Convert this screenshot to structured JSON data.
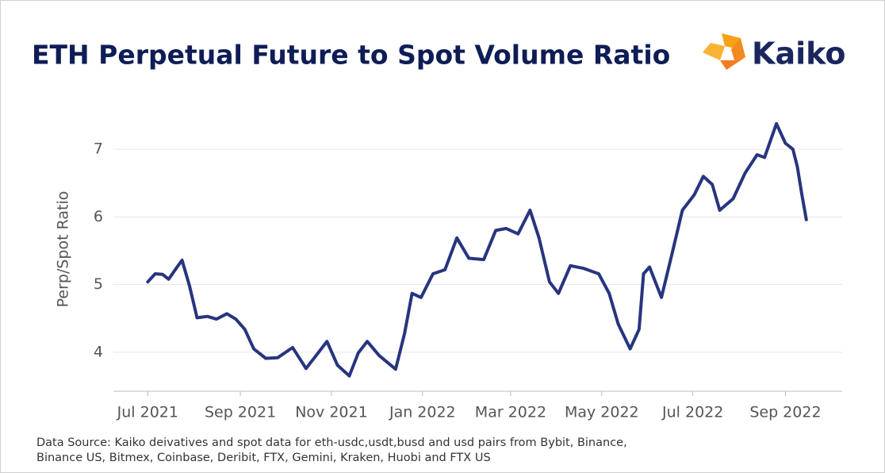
{
  "logo": "Kaiko",
  "chart_data": {
    "type": "line",
    "title": "ETH Perpetual Future to Spot Volume Ratio",
    "y_label": "Perp/Spot Ratio",
    "source": [
      "Data Source: Kaiko deivatives and spot data for eth-usdc,usdt,busd and usd pairs from Bybit, Binance,",
      "Binance US, Bitmex, Coinbase, Deribit, FTX, Gemini, Kraken, Huobi and FTX US"
    ],
    "x": [
      "2021-07-01",
      "2021-07-06",
      "2021-07-11",
      "2021-07-15",
      "2021-07-20",
      "2021-07-24",
      "2021-07-29",
      "2021-08-03",
      "2021-08-10",
      "2021-08-16",
      "2021-08-23",
      "2021-08-29",
      "2021-09-04",
      "2021-09-10",
      "2021-09-18",
      "2021-09-26",
      "2021-10-06",
      "2021-10-15",
      "2021-10-21",
      "2021-10-29",
      "2021-11-05",
      "2021-11-13",
      "2021-11-19",
      "2021-11-25",
      "2021-12-03",
      "2021-12-14",
      "2021-12-20",
      "2021-12-25",
      "2021-12-31",
      "2022-01-08",
      "2022-01-16",
      "2022-01-24",
      "2022-02-01",
      "2022-02-11",
      "2022-02-19",
      "2022-02-26",
      "2022-03-06",
      "2022-03-14",
      "2022-03-20",
      "2022-03-27",
      "2022-04-02",
      "2022-04-10",
      "2022-04-19",
      "2022-04-29",
      "2022-05-06",
      "2022-05-12",
      "2022-05-20",
      "2022-05-26",
      "2022-05-29",
      "2022-06-02",
      "2022-06-10",
      "2022-06-17",
      "2022-06-24",
      "2022-07-02",
      "2022-07-08",
      "2022-07-14",
      "2022-07-19",
      "2022-07-28",
      "2022-08-05",
      "2022-08-13",
      "2022-08-18",
      "2022-08-26",
      "2022-09-01",
      "2022-09-06",
      "2022-09-09",
      "2022-09-12",
      "2022-09-15"
    ],
    "series": [
      {
        "name": "Perp/Spot Ratio",
        "color": "#27357f",
        "values": [
          5.04,
          5.16,
          5.15,
          5.08,
          5.24,
          5.36,
          4.98,
          4.51,
          4.53,
          4.49,
          4.57,
          4.49,
          4.34,
          4.05,
          3.91,
          3.92,
          4.07,
          3.76,
          3.93,
          4.16,
          3.81,
          3.65,
          3.99,
          4.16,
          3.95,
          3.75,
          4.28,
          4.87,
          4.81,
          5.16,
          5.22,
          5.69,
          5.39,
          5.37,
          5.8,
          5.83,
          5.75,
          6.1,
          5.69,
          5.04,
          4.87,
          5.28,
          5.24,
          5.16,
          4.87,
          4.42,
          4.05,
          4.34,
          5.16,
          5.26,
          4.81,
          5.45,
          6.1,
          6.33,
          6.6,
          6.48,
          6.1,
          6.27,
          6.65,
          6.92,
          6.88,
          7.38,
          7.09,
          7.0,
          6.74,
          6.33,
          5.96
        ]
      }
    ],
    "xlim": [
      "2021-06-08",
      "2022-10-09"
    ],
    "xticks": [
      {
        "value": "2021-07-01",
        "label": "Jul 2021"
      },
      {
        "value": "2021-09-01",
        "label": "Sep 2021"
      },
      {
        "value": "2021-11-01",
        "label": "Nov 2021"
      },
      {
        "value": "2022-01-01",
        "label": "Jan 2022"
      },
      {
        "value": "2022-03-01",
        "label": "Mar 2022"
      },
      {
        "value": "2022-05-01",
        "label": "May 2022"
      },
      {
        "value": "2022-07-01",
        "label": "Jul 2022"
      },
      {
        "value": "2022-09-01",
        "label": "Sep 2022"
      }
    ],
    "ylim": [
      3.4,
      7.6
    ],
    "yticks": [
      4,
      5,
      6,
      7
    ],
    "grid": true
  }
}
